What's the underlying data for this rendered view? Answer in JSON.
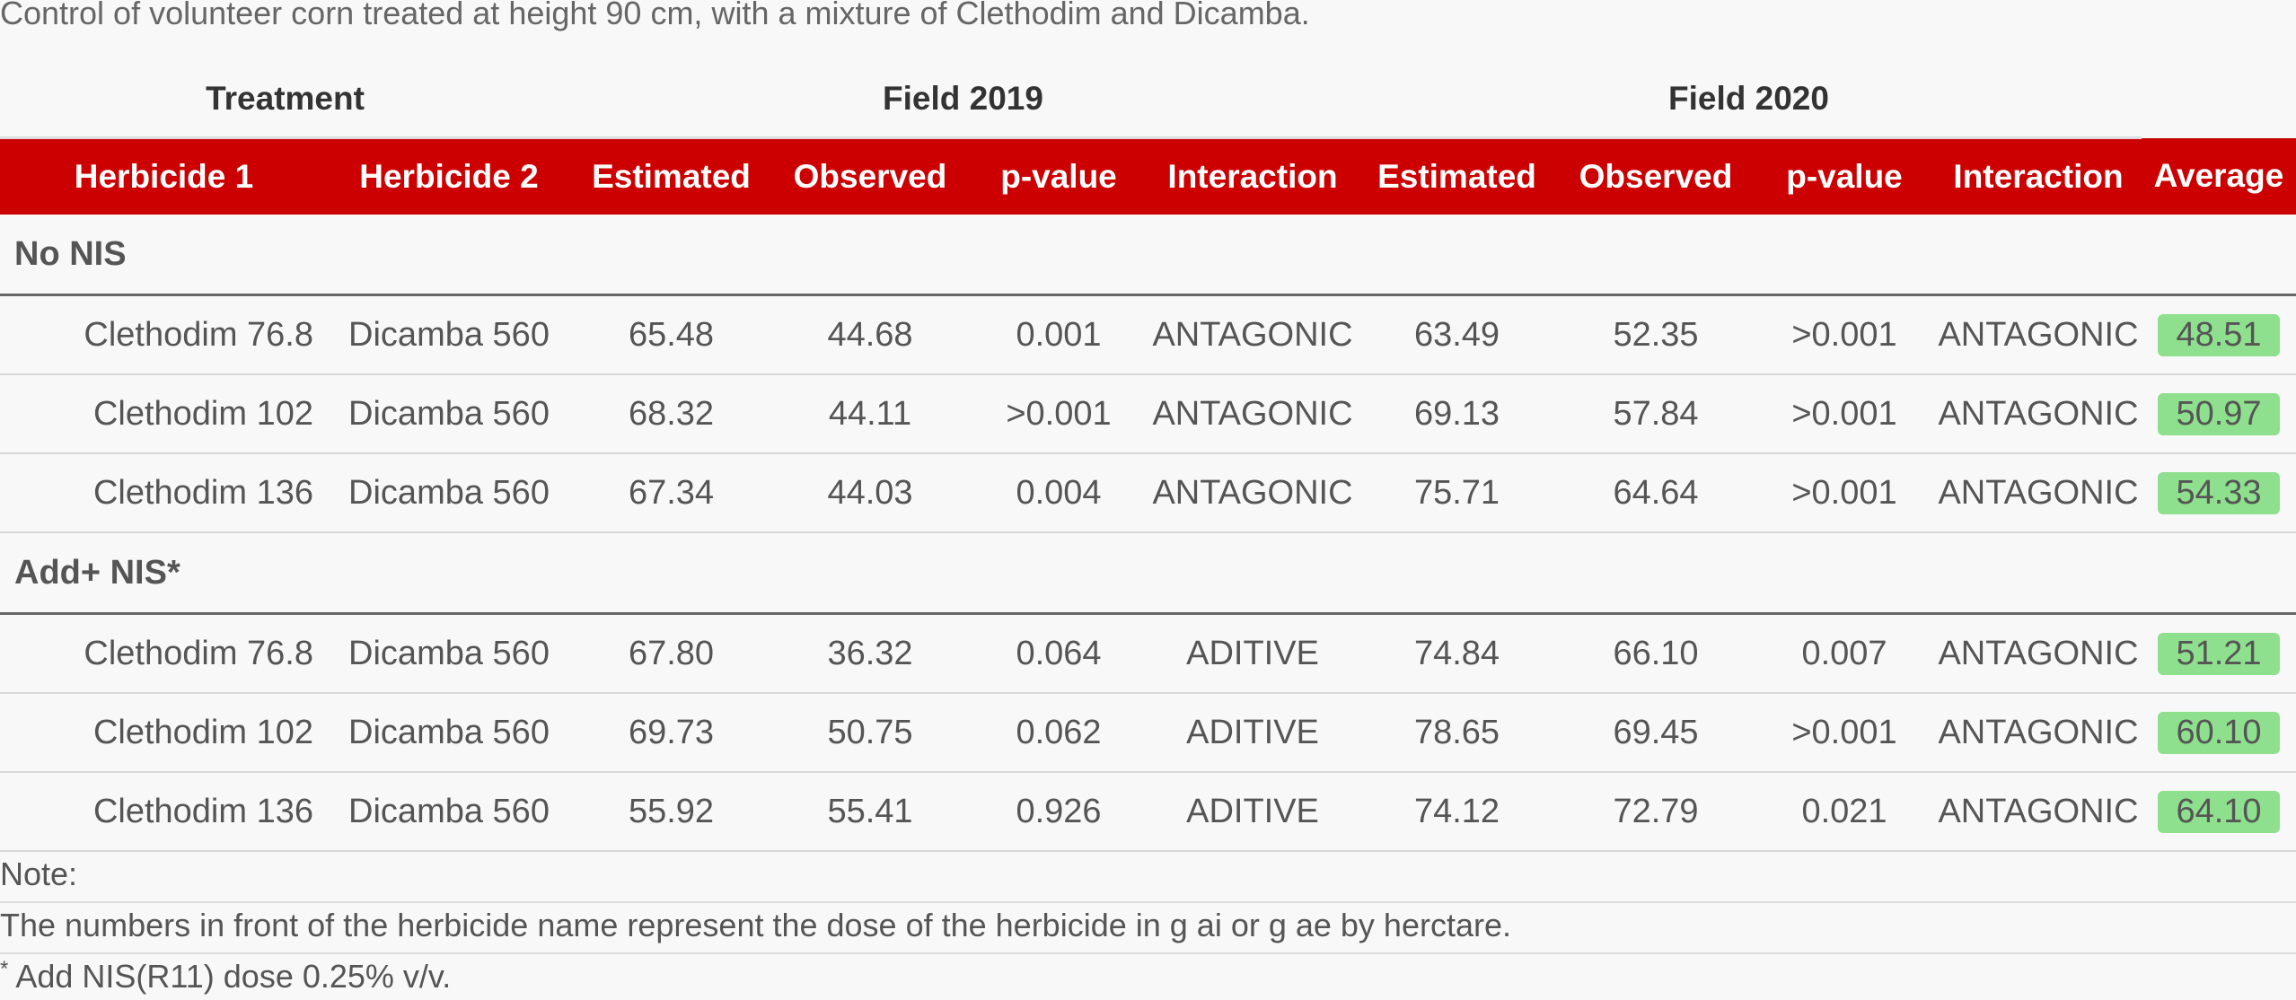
{
  "caption": "Control of volunteer corn treated at height 90 cm, with a mixture of Clethodim and Dicamba.",
  "spanners": {
    "treatment": "Treatment",
    "field_2019": "Field 2019",
    "field_2020": "Field 2020"
  },
  "columns": [
    "Herbicide 1",
    "Herbicide 2",
    "Estimated",
    "Observed",
    "p-value",
    "Interaction",
    "Estimated",
    "Observed",
    "p-value",
    "Interaction",
    "Average"
  ],
  "groups": [
    {
      "label": "No NIS",
      "rows": [
        {
          "h1": "Clethodim 76.8",
          "h2": "Dicamba 560",
          "est19": "65.48",
          "obs19": "44.68",
          "p19": "0.001",
          "int19": "ANTAGONIC",
          "est20": "63.49",
          "obs20": "52.35",
          "p20": ">0.001",
          "int20": "ANTAGONIC",
          "avg": "48.51"
        },
        {
          "h1": "Clethodim 102",
          "h2": "Dicamba 560",
          "est19": "68.32",
          "obs19": "44.11",
          "p19": ">0.001",
          "int19": "ANTAGONIC",
          "est20": "69.13",
          "obs20": "57.84",
          "p20": ">0.001",
          "int20": "ANTAGONIC",
          "avg": "50.97"
        },
        {
          "h1": "Clethodim 136",
          "h2": "Dicamba 560",
          "est19": "67.34",
          "obs19": "44.03",
          "p19": "0.004",
          "int19": "ANTAGONIC",
          "est20": "75.71",
          "obs20": "64.64",
          "p20": ">0.001",
          "int20": "ANTAGONIC",
          "avg": "54.33"
        }
      ]
    },
    {
      "label": "Add+ NIS*",
      "rows": [
        {
          "h1": "Clethodim 76.8",
          "h2": "Dicamba 560",
          "est19": "67.80",
          "obs19": "36.32",
          "p19": "0.064",
          "int19": "ADITIVE",
          "est20": "74.84",
          "obs20": "66.10",
          "p20": "0.007",
          "int20": "ANTAGONIC",
          "avg": "51.21"
        },
        {
          "h1": "Clethodim 102",
          "h2": "Dicamba 560",
          "est19": "69.73",
          "obs19": "50.75",
          "p19": "0.062",
          "int19": "ADITIVE",
          "est20": "78.65",
          "obs20": "69.45",
          "p20": ">0.001",
          "int20": "ANTAGONIC",
          "avg": "60.10"
        },
        {
          "h1": "Clethodim 136",
          "h2": "Dicamba 560",
          "est19": "55.92",
          "obs19": "55.41",
          "p19": "0.926",
          "int19": "ADITIVE",
          "est20": "74.12",
          "obs20": "72.79",
          "p20": "0.021",
          "int20": "ANTAGONIC",
          "avg": "64.10"
        }
      ]
    }
  ],
  "notes": {
    "label": "Note:",
    "line1": "The numbers in front of the herbicide name represent the dose of the herbicide in g ai or g ae by herctare.",
    "footnote_mark": "*",
    "line2": " Add NIS(R11) dose 0.25% v/v."
  },
  "colors": {
    "header_bg": "#cc0000",
    "antagonic_text": "#cc0000",
    "aditive_text": "#000000",
    "average_highlight": "#8ee08e"
  }
}
